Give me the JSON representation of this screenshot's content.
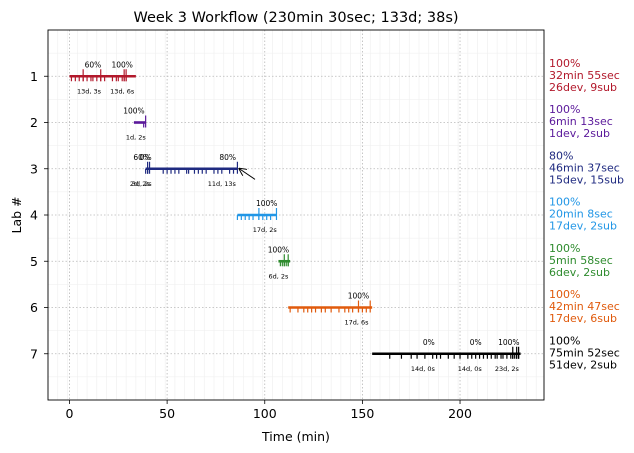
{
  "chart_data": {
    "type": "timeline",
    "title": "Week 3 Workflow (230min 30sec; 133d; 38s)",
    "xlabel": "Time (min)",
    "ylabel": "Lab #",
    "xlim": [
      -11,
      243
    ],
    "ylim": [
      0,
      8
    ],
    "x_ticks": [
      0,
      50,
      100,
      150,
      200
    ],
    "y_ticks": [
      1,
      2,
      3,
      4,
      5,
      6,
      7
    ],
    "grid": true,
    "labs": [
      {
        "lab": 1,
        "color": "#b2182b",
        "start": 0,
        "end": 34,
        "events": [
          1,
          3,
          5,
          7,
          9,
          11,
          12,
          14,
          16,
          18,
          22,
          24,
          25,
          27,
          28,
          29
        ],
        "tall_events": [
          7,
          16,
          28,
          29
        ],
        "pct_labels": [
          {
            "x": 12,
            "text": "60%"
          },
          {
            "x": 27,
            "text": "100%"
          }
        ],
        "sub_labels": [
          {
            "x": 10,
            "text": "13d, 3s"
          },
          {
            "x": 27,
            "text": "13d, 6s"
          }
        ],
        "side": [
          "100%",
          "32min 55sec",
          "26dev, 9sub"
        ]
      },
      {
        "lab": 2,
        "color": "#5a189a",
        "start": 33,
        "end": 39,
        "events": [
          38
        ],
        "tall_events": [
          39
        ],
        "pct_labels": [
          {
            "x": 33,
            "text": "100%"
          }
        ],
        "sub_labels": [
          {
            "x": 34,
            "text": "1d, 2s"
          }
        ],
        "side": [
          "100%",
          "6min 13sec",
          "1dev, 2sub"
        ]
      },
      {
        "lab": 3,
        "color": "#1f2a80",
        "start": 39,
        "end": 86,
        "events": [
          39,
          40,
          48,
          50,
          52,
          54,
          56,
          60,
          61,
          64,
          66,
          68,
          70,
          74,
          76,
          78,
          82,
          84
        ],
        "tall_events": [
          40,
          41,
          86
        ],
        "pct_labels": [
          {
            "x": 37,
            "text": "60%"
          },
          {
            "x": 39,
            "text": "0%"
          },
          {
            "x": 81,
            "text": "80%"
          }
        ],
        "sub_labels": [
          {
            "x": 36,
            "text": "2d, 2s"
          },
          {
            "x": 37,
            "text": "3d, 2s"
          },
          {
            "x": 78,
            "text": "11d, 13s"
          }
        ],
        "arrow": {
          "from": [
            95,
            3.23
          ],
          "to": [
            87,
            3.0
          ]
        },
        "side": [
          "80%",
          "46min 37sec",
          "15dev, 15sub"
        ]
      },
      {
        "lab": 4,
        "color": "#2196e6",
        "start": 86,
        "end": 106,
        "events": [
          86,
          88,
          90,
          92,
          94,
          97,
          99,
          101,
          103
        ],
        "tall_events": [
          97,
          106
        ],
        "pct_labels": [
          {
            "x": 101,
            "text": "100%"
          }
        ],
        "sub_labels": [
          {
            "x": 100,
            "text": "17d, 2s"
          }
        ],
        "side": [
          "100%",
          "20min 8sec",
          "17dev, 2sub"
        ]
      },
      {
        "lab": 5,
        "color": "#2e8b2e",
        "start": 107,
        "end": 113,
        "events": [
          108,
          109,
          110,
          111,
          112
        ],
        "tall_events": [
          110,
          112
        ],
        "pct_labels": [
          {
            "x": 107,
            "text": "100%"
          }
        ],
        "sub_labels": [
          {
            "x": 107,
            "text": "6d, 2s"
          }
        ],
        "side": [
          "100%",
          "5min 58sec",
          "6dev, 2sub"
        ]
      },
      {
        "lab": 6,
        "color": "#e05a0c",
        "start": 112,
        "end": 155,
        "events": [
          113,
          117,
          120,
          122,
          124,
          126,
          129,
          131,
          134,
          138,
          141,
          143,
          145,
          148,
          150,
          152
        ],
        "tall_events": [
          148,
          154
        ],
        "pct_labels": [
          {
            "x": 148,
            "text": "100%"
          }
        ],
        "sub_labels": [
          {
            "x": 147,
            "text": "17d, 6s"
          }
        ],
        "side": [
          "100%",
          "42min 47sec",
          "17dev, 6sub"
        ]
      },
      {
        "lab": 7,
        "color": "#000000",
        "start": 155,
        "end": 231,
        "events": [
          164,
          170,
          175,
          178,
          182,
          186,
          188,
          190,
          194,
          197,
          200,
          204,
          206,
          208,
          210,
          212,
          214,
          216,
          218,
          219,
          221,
          222,
          224,
          226,
          227,
          228,
          229,
          230
        ],
        "tall_events": [
          227,
          229,
          230
        ],
        "pct_labels": [
          {
            "x": 184,
            "text": "0%"
          },
          {
            "x": 208,
            "text": "0%"
          },
          {
            "x": 225,
            "text": "100%"
          }
        ],
        "sub_labels": [
          {
            "x": 181,
            "text": "14d, 0s"
          },
          {
            "x": 205,
            "text": "14d, 0s"
          },
          {
            "x": 224,
            "text": "23d, 2s"
          }
        ],
        "side": [
          "100%",
          "75min 52sec",
          "51dev, 2sub"
        ]
      }
    ]
  }
}
